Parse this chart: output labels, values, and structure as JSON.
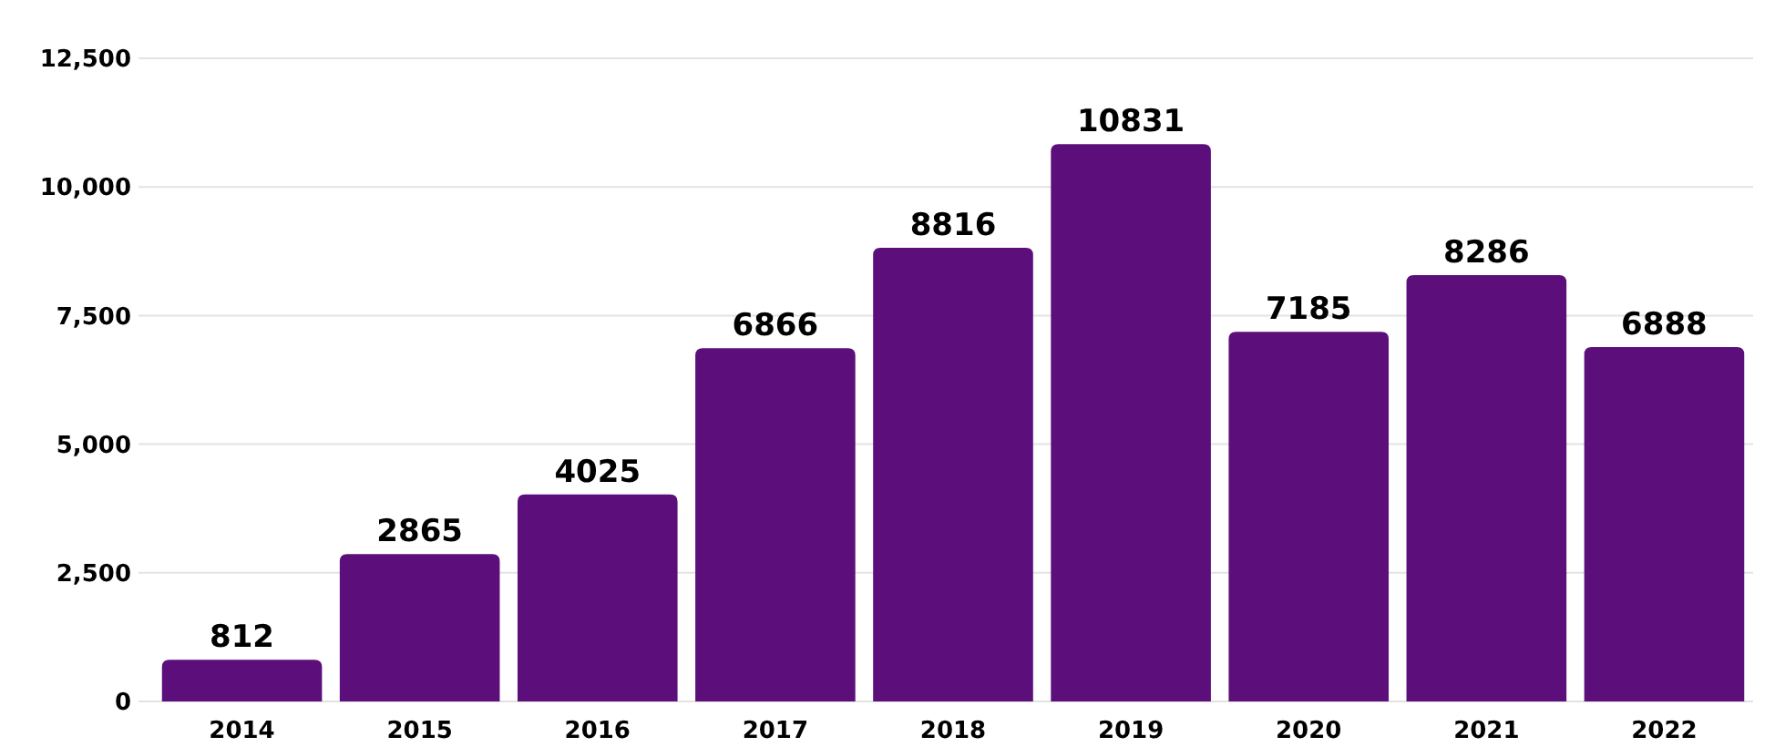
{
  "chart_data": {
    "type": "bar",
    "categories": [
      "2014",
      "2015",
      "2016",
      "2017",
      "2018",
      "2019",
      "2020",
      "2021",
      "2022"
    ],
    "values": [
      812,
      2865,
      4025,
      6866,
      8816,
      10831,
      7185,
      8286,
      6888
    ],
    "color": "#5c0f7a",
    "ylim": [
      0,
      12500
    ],
    "yticks": [
      {
        "value": 0,
        "label": "0"
      },
      {
        "value": 2500,
        "label": "2,500"
      },
      {
        "value": 5000,
        "label": "5,000"
      },
      {
        "value": 7500,
        "label": "7,500"
      },
      {
        "value": 10000,
        "label": "10,000"
      },
      {
        "value": 12500,
        "label": "12,500"
      }
    ],
    "grid": "y",
    "data_labels": true
  }
}
